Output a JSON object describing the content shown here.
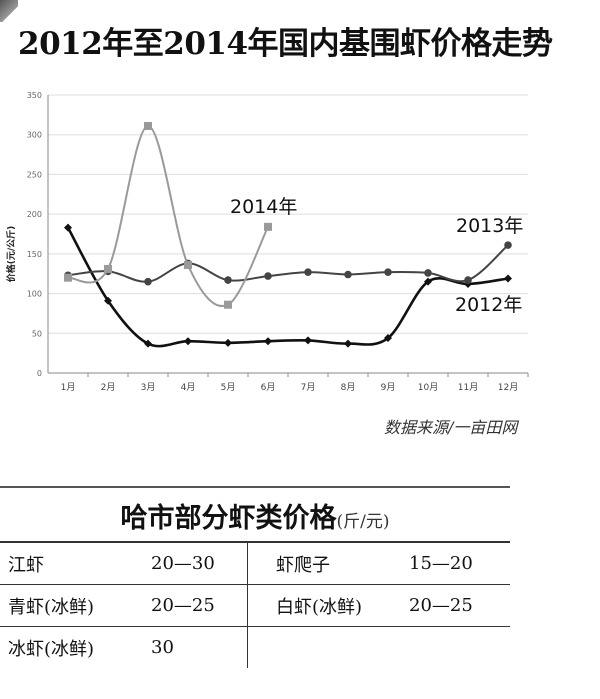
{
  "title": "2012年至2014年国内基围虾价格走势",
  "source": "数据来源/一亩田网",
  "chart_data": {
    "type": "line",
    "title": "2012年至2014年国内基围虾价格走势",
    "xlabel": "",
    "ylabel": "价格(元/公斤)",
    "categories": [
      "1月",
      "2月",
      "3月",
      "4月",
      "5月",
      "6月",
      "7月",
      "8月",
      "9月",
      "10月",
      "11月",
      "12月"
    ],
    "ylim": [
      0,
      350
    ],
    "yticks": [
      "0",
      "50",
      "100",
      "150",
      "200",
      "250",
      "300",
      "350"
    ],
    "grid": true,
    "series": [
      {
        "name": "2012年",
        "color": "#111111",
        "marker": "diamond",
        "values": [
          183,
          91,
          37,
          40,
          38,
          40,
          41,
          37,
          44,
          115,
          112,
          119
        ]
      },
      {
        "name": "2013年",
        "color": "#444444",
        "marker": "circle",
        "values": [
          123,
          128,
          115,
          138,
          117,
          122,
          127,
          124,
          127,
          126,
          117,
          161
        ]
      },
      {
        "name": "2014年",
        "color": "#9a9a9a",
        "marker": "square",
        "values": [
          120,
          131,
          311,
          136,
          86,
          184,
          null,
          null,
          null,
          null,
          null,
          null
        ]
      }
    ]
  },
  "table": {
    "title": "哈市部分虾类价格",
    "unit": "(斤/元)",
    "rows": [
      {
        "name1": "江虾",
        "price1": "20—30",
        "name2": "虾爬子",
        "price2": "15—20"
      },
      {
        "name1": "青虾(冰鲜)",
        "price1": "20—25",
        "name2": "白虾(冰鲜)",
        "price2": "20—25"
      },
      {
        "name1": "冰虾(冰鲜)",
        "price1": "30",
        "name2": "",
        "price2": ""
      }
    ]
  }
}
